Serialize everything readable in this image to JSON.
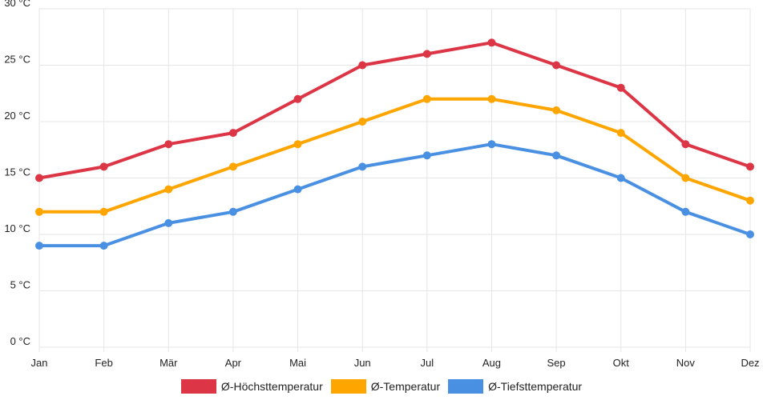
{
  "chart_data": {
    "type": "line",
    "categories": [
      "Jan",
      "Feb",
      "Mär",
      "Apr",
      "Mai",
      "Jun",
      "Jul",
      "Aug",
      "Sep",
      "Okt",
      "Nov",
      "Dez"
    ],
    "ylim": [
      0,
      30
    ],
    "yticks": [
      0,
      5,
      10,
      15,
      20,
      25,
      30
    ],
    "yunit": " °C",
    "grid": true,
    "legend_position": "bottom",
    "series": [
      {
        "name": "Ø-Höchsttemperatur",
        "color": "#dc3545",
        "values": [
          15,
          16,
          18,
          19,
          22,
          25,
          26,
          27,
          25,
          23,
          18,
          16
        ]
      },
      {
        "name": "Ø-Temperatur",
        "color": "#ffa500",
        "values": [
          12,
          12,
          14,
          16,
          18,
          20,
          22,
          22,
          21,
          19,
          15,
          13
        ]
      },
      {
        "name": "Ø-Tiefsttemperatur",
        "color": "#4a90e2",
        "values": [
          9,
          9,
          11,
          12,
          14,
          16,
          17,
          18,
          17,
          15,
          12,
          10
        ]
      }
    ]
  }
}
